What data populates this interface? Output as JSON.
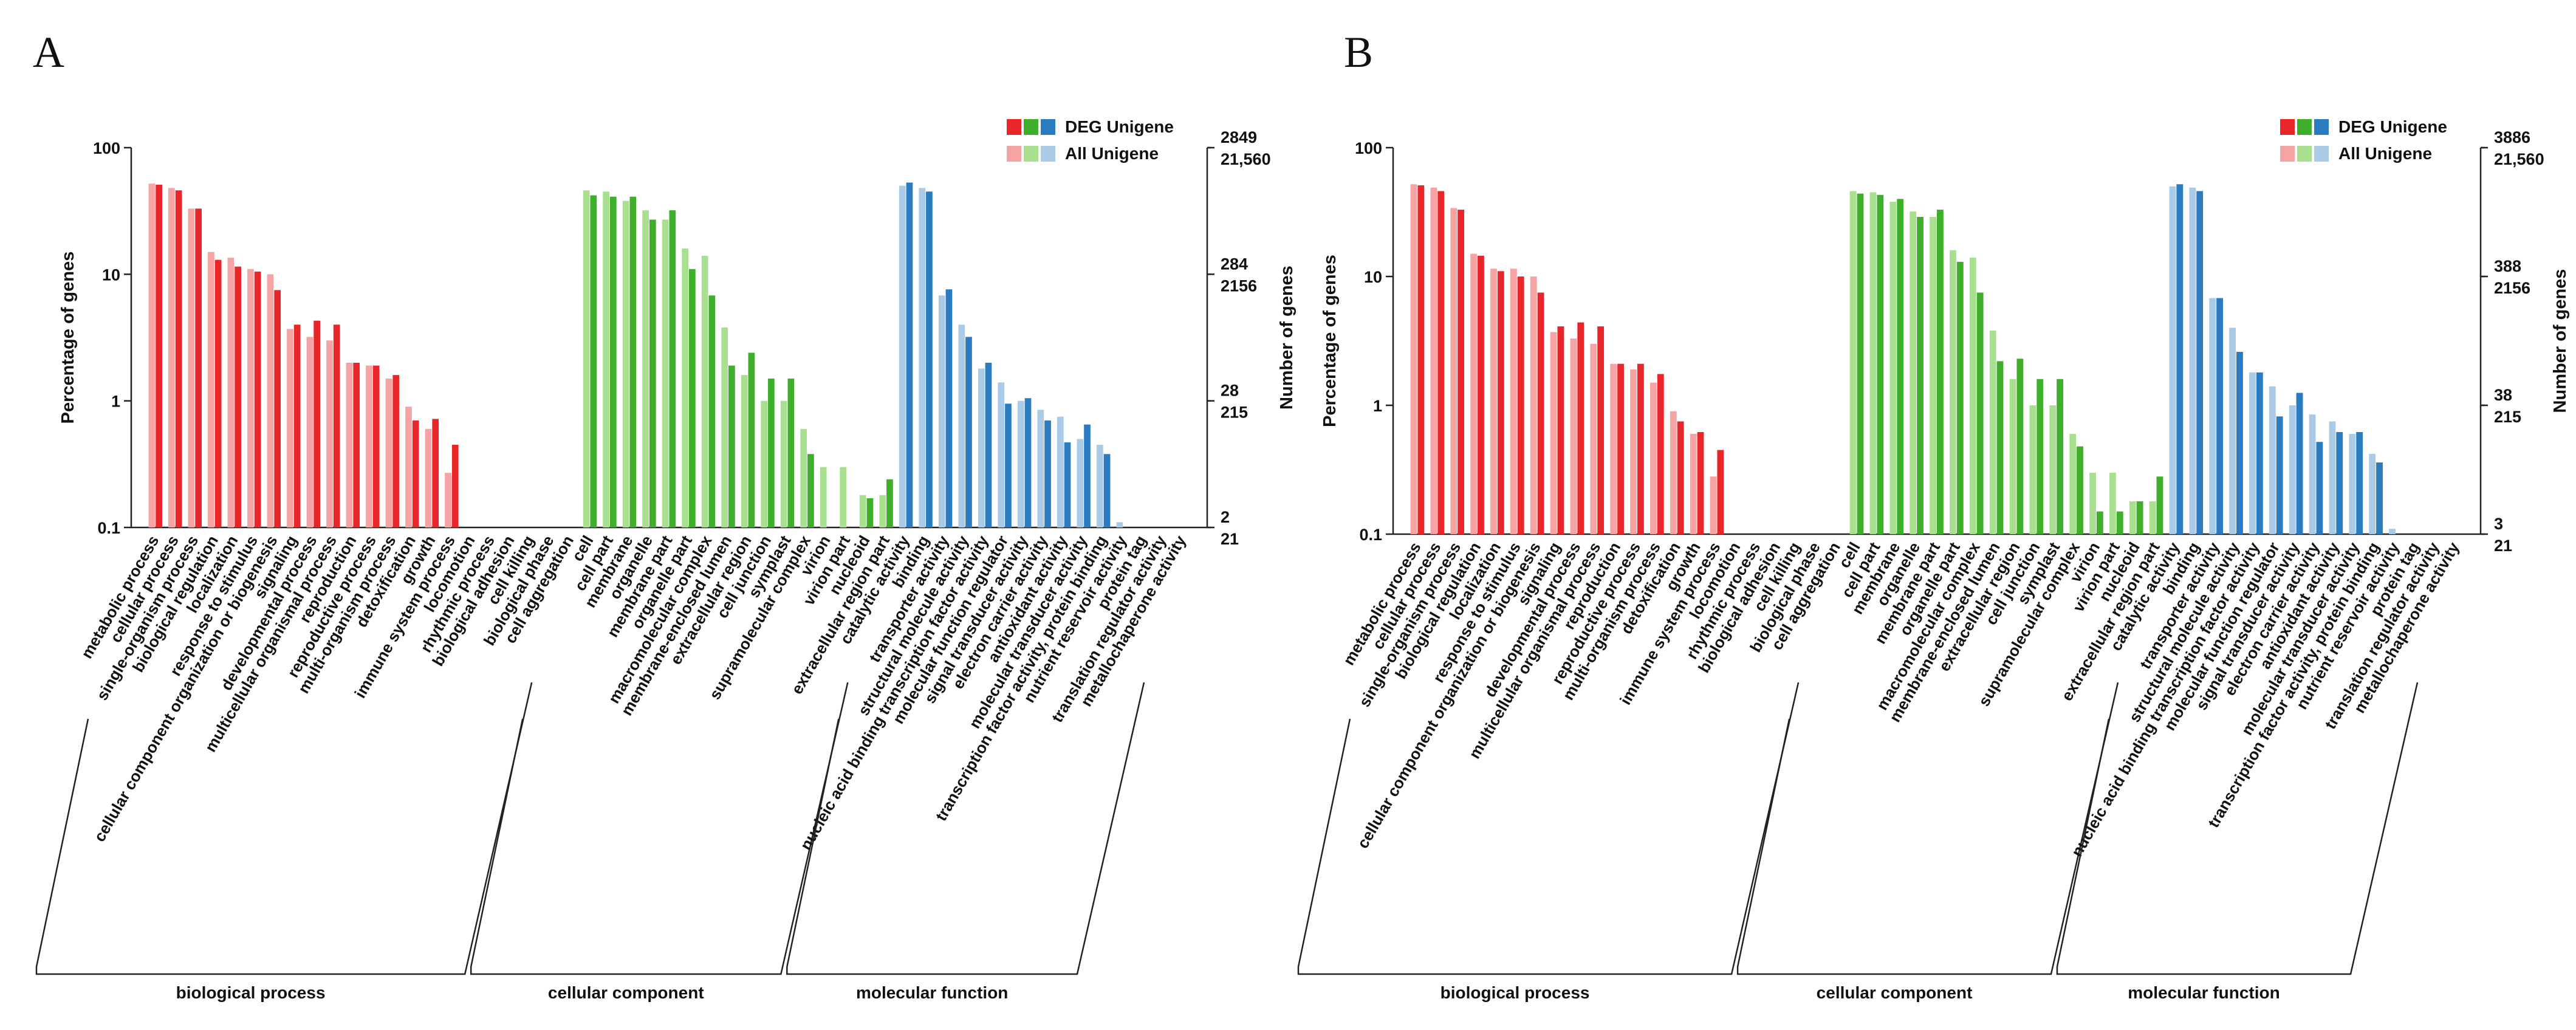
{
  "chart_data": [
    {
      "type": "bar",
      "panel": "A",
      "log_y": true,
      "ylabel": "Percentage of genes",
      "y2label": "Number of genes",
      "ylim": [
        0.1,
        100
      ],
      "yticks": [
        100,
        10,
        1,
        0.1
      ],
      "y2ticks": [
        {
          "value": 100,
          "label": "2849"
        },
        {
          "value": 10,
          "label": "284"
        },
        {
          "value": 1,
          "label": "28"
        },
        {
          "value": 0.1,
          "label": "2"
        }
      ],
      "y2ticks_all": [
        {
          "value": 100,
          "label": "21,560"
        },
        {
          "value": 10,
          "label": "2156"
        },
        {
          "value": 1,
          "label": "215"
        },
        {
          "value": 0.1,
          "label": "21"
        }
      ],
      "groups": [
        {
          "name": "biological process",
          "categories": [
            "metabolic process",
            "cellular process",
            "single-organism process",
            "biological regulation",
            "localization",
            "response to stimulus",
            "cellular component organization or biogenesis",
            "signaling",
            "developmental process",
            "multicellular organismal process",
            "reproduction",
            "reproductive process",
            "multi-organism process",
            "detoxification",
            "growth",
            "immune system process",
            "locomotion",
            "rhythmic process",
            "biological adhesion",
            "cell killing",
            "biological phase",
            "cell aggregation"
          ],
          "series": [
            {
              "name": "All Unigene",
              "color": "#f5a3a3",
              "values": [
                52,
                48,
                33,
                15,
                13.5,
                11,
                10,
                3.7,
                3.2,
                3.0,
                2.0,
                1.9,
                1.5,
                0.9,
                0.6,
                0.27,
                0.05,
                0.05,
                0.05,
                0.05,
                0.05,
                0.05
              ]
            },
            {
              "name": "DEG Unigene",
              "color": "#e8262a",
              "values": [
                51,
                46,
                33,
                13,
                11.5,
                10.5,
                7.5,
                4.0,
                4.3,
                4.0,
                2.0,
                1.9,
                1.6,
                0.7,
                0.72,
                0.45,
                0.05,
                0.05,
                0.05,
                0.05,
                0.05,
                0.05
              ]
            }
          ]
        },
        {
          "name": "cellular component",
          "categories": [
            "cell",
            "cell part",
            "membrane",
            "organelle",
            "membrane part",
            "organelle part",
            "macromolecular complex",
            "membrane-enclosed lumen",
            "extracellular region",
            "cell junction",
            "symplast",
            "supramolecular complex",
            "virion",
            "virion part",
            "nucleoid",
            "extracellular region part"
          ],
          "series": [
            {
              "name": "All Unigene",
              "color": "#a8e08f",
              "values": [
                46,
                45,
                38,
                32,
                27,
                16,
                14,
                3.8,
                1.6,
                1.0,
                1.0,
                0.6,
                0.3,
                0.3,
                0.18,
                0.18
              ]
            },
            {
              "name": "DEG Unigene",
              "color": "#3fae2a",
              "values": [
                42,
                41,
                41,
                27,
                32,
                11,
                6.8,
                1.9,
                2.4,
                1.5,
                1.5,
                0.38,
                0.05,
                0.05,
                0.17,
                0.24
              ]
            }
          ]
        },
        {
          "name": "molecular function",
          "categories": [
            "catalytic activity",
            "binding",
            "transporter activity",
            "structural molecule activity",
            "nucleic acid binding transcription factor activity",
            "molecular function regulator",
            "signal transducer activity",
            "electron carrier activity",
            "antioxidant activity",
            "molecular transducer activity",
            "transcription factor activity, protein binding",
            "nutrient reservoir activity",
            "protein tag",
            "translation regulator activity",
            "metallochaperone activity"
          ],
          "series": [
            {
              "name": "All Unigene",
              "color": "#a9cbe8",
              "values": [
                50,
                48,
                6.8,
                4.0,
                1.8,
                1.4,
                1.0,
                0.85,
                0.75,
                0.5,
                0.45,
                0.11,
                0.05,
                0.05,
                0.05
              ]
            },
            {
              "name": "DEG Unigene",
              "color": "#2a7bbf",
              "values": [
                53,
                45,
                7.6,
                3.2,
                2.0,
                0.95,
                1.05,
                0.7,
                0.47,
                0.65,
                0.38,
                0.05,
                0.05,
                0.05,
                0.05
              ]
            }
          ]
        }
      ]
    },
    {
      "type": "bar",
      "panel": "B",
      "log_y": true,
      "ylabel": "Percentage of genes",
      "y2label": "Number of genes",
      "ylim": [
        0.1,
        100
      ],
      "yticks": [
        100,
        10,
        1,
        0.1
      ],
      "y2ticks": [
        {
          "value": 100,
          "label": "3886"
        },
        {
          "value": 10,
          "label": "388"
        },
        {
          "value": 1,
          "label": "38"
        },
        {
          "value": 0.1,
          "label": "3"
        }
      ],
      "y2ticks_all": [
        {
          "value": 100,
          "label": "21,560"
        },
        {
          "value": 10,
          "label": "2156"
        },
        {
          "value": 1,
          "label": "215"
        },
        {
          "value": 0.1,
          "label": "21"
        }
      ],
      "groups": [
        {
          "name": "biological process",
          "categories": [
            "metabolic process",
            "cellular process",
            "single-organism process",
            "biological regulation",
            "localization",
            "response to stimulus",
            "cellular component organization or biogenesis",
            "signaling",
            "developmental process",
            "multicellular organismal process",
            "reproduction",
            "reproductive process",
            "multi-organism process",
            "detoxification",
            "growth",
            "immune system process",
            "locomotion",
            "rhythmic process",
            "biological adhesion",
            "cell killing",
            "biological phase",
            "cell aggregation"
          ],
          "series": [
            {
              "name": "All Unigene",
              "color": "#f5a3a3",
              "values": [
                52,
                49,
                34,
                15,
                11.5,
                11.5,
                10,
                3.7,
                3.3,
                3.0,
                2.1,
                1.9,
                1.5,
                0.9,
                0.6,
                0.28,
                0.05,
                0.05,
                0.05,
                0.05,
                0.05,
                0.05
              ]
            },
            {
              "name": "DEG Unigene",
              "color": "#e8262a",
              "values": [
                51,
                46,
                33,
                14.5,
                11,
                10,
                7.5,
                4.1,
                4.4,
                4.1,
                2.1,
                2.1,
                1.75,
                0.75,
                0.62,
                0.45,
                0.05,
                0.05,
                0.05,
                0.05,
                0.05,
                0.05
              ]
            }
          ]
        },
        {
          "name": "cellular component",
          "categories": [
            "cell",
            "cell part",
            "membrane",
            "organelle",
            "membrane part",
            "organelle part",
            "macromolecular complex",
            "membrane-enclosed lumen",
            "extracellular region",
            "cell junction",
            "symplast",
            "supramolecular complex",
            "virion",
            "virion part",
            "nucleoid",
            "extracellular region part"
          ],
          "series": [
            {
              "name": "All Unigene",
              "color": "#a8e08f",
              "values": [
                46,
                45,
                38,
                32,
                29,
                16,
                14,
                3.8,
                1.6,
                1.0,
                1.0,
                0.6,
                0.3,
                0.3,
                0.18,
                0.18
              ]
            },
            {
              "name": "DEG Unigene",
              "color": "#3fae2a",
              "values": [
                44,
                43,
                40,
                29,
                33,
                13,
                7.5,
                2.2,
                2.3,
                1.6,
                1.6,
                0.48,
                0.15,
                0.15,
                0.18,
                0.28
              ]
            }
          ]
        },
        {
          "name": "molecular function",
          "categories": [
            "catalytic activity",
            "binding",
            "transporter activity",
            "structural molecule activity",
            "nucleic acid binding transcription factor activity",
            "molecular function regulator",
            "signal transducer activity",
            "electron carrier activity",
            "antioxidant activity",
            "molecular transducer activity",
            "transcription factor activity, protein binding",
            "nutrient reservoir activity",
            "protein tag",
            "translation regulator activity",
            "metallochaperone activity"
          ],
          "series": [
            {
              "name": "All Unigene",
              "color": "#a9cbe8",
              "values": [
                50,
                49,
                6.8,
                4.0,
                1.8,
                1.4,
                1.0,
                0.85,
                0.75,
                0.6,
                0.42,
                0.11,
                0.05,
                0.05,
                0.05
              ]
            },
            {
              "name": "DEG Unigene",
              "color": "#2a7bbf",
              "values": [
                52,
                46,
                6.8,
                2.6,
                1.8,
                0.82,
                1.25,
                0.52,
                0.62,
                0.62,
                0.36,
                0.05,
                0.05,
                0.05,
                0.05
              ]
            }
          ]
        }
      ]
    }
  ]
}
